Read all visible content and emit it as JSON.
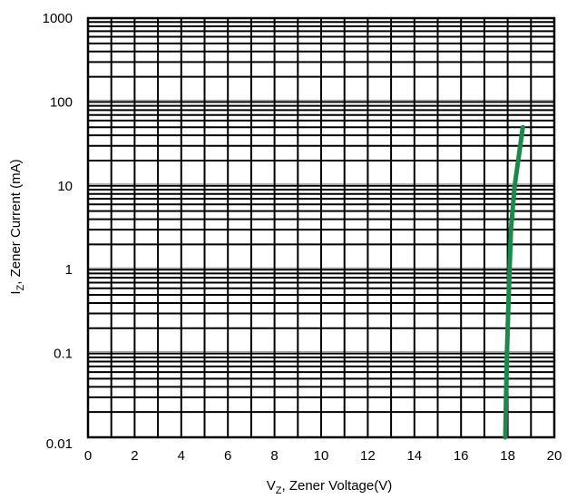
{
  "chart_data": {
    "type": "line",
    "xlabel": {
      "main": "V",
      "sub": "Z",
      "rest": ", Zener Voltage(V)"
    },
    "ylabel": {
      "main": "I",
      "sub": "Z",
      "rest": ", Zener Current (mA)"
    },
    "xlim": [
      0,
      20
    ],
    "ylim": [
      0.01,
      1000
    ],
    "yscale": "log",
    "grid": true,
    "x_ticks": [
      "0",
      "2",
      "4",
      "6",
      "8",
      "10",
      "12",
      "14",
      "16",
      "18",
      "20"
    ],
    "y_ticks": [
      "0.01",
      "0.1",
      "1",
      "10",
      "100",
      "1000"
    ],
    "line_color": "#1a8a4a",
    "series": [
      {
        "x": [
          17.9,
          17.93,
          17.97,
          18.02,
          18.08,
          18.14,
          18.3,
          18.45,
          18.65
        ],
        "y": [
          0.01,
          0.03,
          0.1,
          0.3,
          1,
          3,
          10,
          20,
          50
        ]
      }
    ]
  }
}
